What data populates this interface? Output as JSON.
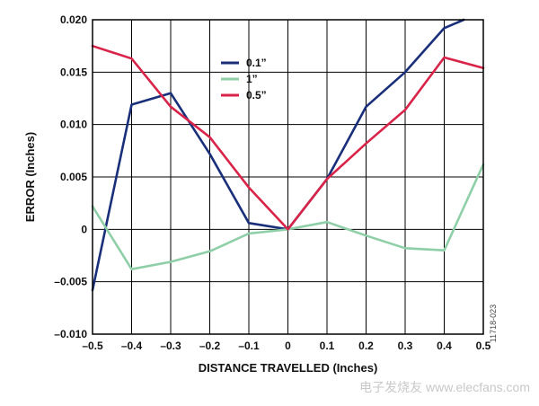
{
  "chart_data": {
    "type": "line",
    "xlabel": "DISTANCE TRAVELLED (Inches)",
    "ylabel": "ERROR (Inches)",
    "xlim": [
      -0.5,
      0.5
    ],
    "ylim": [
      -0.01,
      0.02
    ],
    "x_ticks": [
      "–0.5",
      "–0.4",
      "–0.3",
      "–0.2",
      "–0.1",
      "0",
      "0.1",
      "0.2",
      "0.3",
      "0.4",
      "0.5"
    ],
    "y_ticks": [
      "0.020",
      "0.015",
      "0.010",
      "0.005",
      "0",
      "–0.005",
      "–0.010"
    ],
    "grid": true,
    "legend_position": "top-center",
    "series": [
      {
        "name": "0.1”",
        "color": "#1a2f7a",
        "x": [
          -0.5,
          -0.4,
          -0.3,
          -0.2,
          -0.1,
          0,
          0.1,
          0.2,
          0.3,
          0.4,
          0.45
        ],
        "y": [
          -0.0058,
          0.0119,
          0.013,
          0.0072,
          0.0006,
          0.0,
          0.0048,
          0.0117,
          0.015,
          0.0192,
          0.02
        ]
      },
      {
        "name": "1”",
        "color": "#8fcfa8",
        "x": [
          -0.5,
          -0.4,
          -0.3,
          -0.2,
          -0.1,
          0,
          0.1,
          0.2,
          0.3,
          0.4,
          0.5
        ],
        "y": [
          0.0022,
          -0.0038,
          -0.0031,
          -0.0021,
          -0.0004,
          0.0,
          0.0007,
          -0.0006,
          -0.0018,
          -0.002,
          0.0062
        ]
      },
      {
        "name": "0.5”",
        "color": "#d9244a",
        "x": [
          -0.5,
          -0.4,
          -0.3,
          -0.2,
          -0.1,
          0,
          0.1,
          0.2,
          0.3,
          0.4,
          0.5
        ],
        "y": [
          0.0175,
          0.0163,
          0.0117,
          0.0088,
          0.004,
          0.0,
          0.0048,
          0.0082,
          0.0114,
          0.0164,
          0.0154
        ]
      }
    ],
    "figure_code": "11718-023",
    "watermark": "电子发烧友 www.elecfans.com"
  }
}
